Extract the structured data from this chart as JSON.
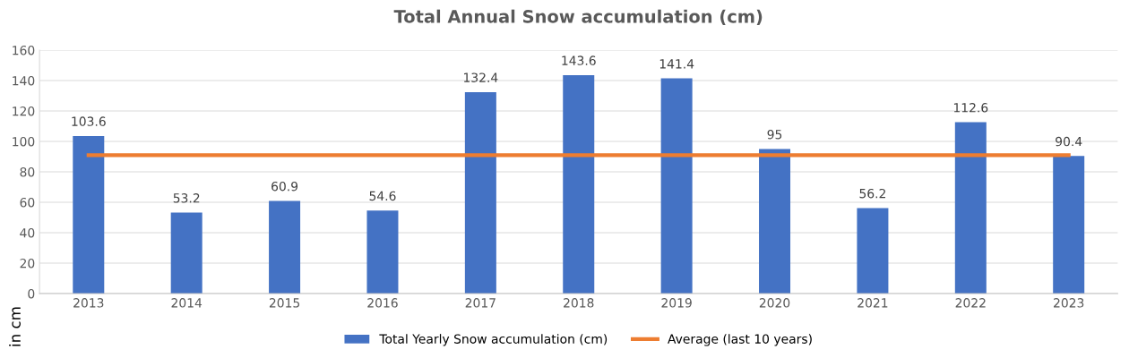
{
  "chart_data": {
    "type": "bar",
    "title": "Total Annual Snow accumulation (cm)",
    "ylabel": "in cm",
    "categories": [
      "2013",
      "2014",
      "2015",
      "2016",
      "2017",
      "2018",
      "2019",
      "2020",
      "2021",
      "2022",
      "2023"
    ],
    "series": [
      {
        "name": "Total Yearly Snow accumulation (cm)",
        "color": "#4472c4",
        "values": [
          103.6,
          53.2,
          60.9,
          54.6,
          132.4,
          143.6,
          141.4,
          95,
          56.2,
          112.6,
          90.4
        ],
        "value_labels": [
          "103.6",
          "53.2",
          "60.9",
          "54.6",
          "132.4",
          "143.6",
          "141.4",
          "95",
          "56.2",
          "112.6",
          "90.4"
        ]
      },
      {
        "name": "Average (last 10 years)",
        "type": "line",
        "color": "#ed7d31",
        "values": [
          91,
          91,
          91,
          91,
          91,
          91,
          91,
          91,
          91,
          91,
          91
        ]
      }
    ],
    "ylim": [
      0,
      160
    ],
    "yticks": [
      0,
      20,
      40,
      60,
      80,
      100,
      120,
      140,
      160
    ],
    "grid": "y",
    "legend": "bottom",
    "marker": "none",
    "line_style": "solid"
  }
}
